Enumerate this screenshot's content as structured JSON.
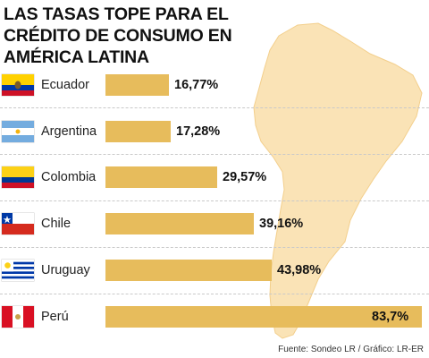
{
  "colors": {
    "bar": "#e7bc5c",
    "map": "#fae3b6",
    "map_stroke": "#f3cf8c"
  },
  "chart_data": {
    "type": "bar",
    "orientation": "horizontal",
    "title": "LAS TASAS TOPE PARA EL CRÉDITO DE CONSUMO EN AMÉRICA LATINA",
    "categories": [
      "Ecuador",
      "Argentina",
      "Colombia",
      "Chile",
      "Uruguay",
      "Perú"
    ],
    "values": [
      16.77,
      17.28,
      29.57,
      39.16,
      43.98,
      83.7
    ],
    "value_labels": [
      "16,77%",
      "17,28%",
      "29,57%",
      "39,16%",
      "43,98%",
      "83,7%"
    ],
    "flag_icons": [
      "ecuador-flag-icon",
      "argentina-flag-icon",
      "colombia-flag-icon",
      "chile-flag-icon",
      "uruguay-flag-icon",
      "peru-flag-icon"
    ],
    "unit": "%",
    "xlim": [
      0,
      83.7
    ],
    "grid": false,
    "legend": "none"
  },
  "source": "Fuente: Sondeo LR / Gráfico: LR-ER"
}
